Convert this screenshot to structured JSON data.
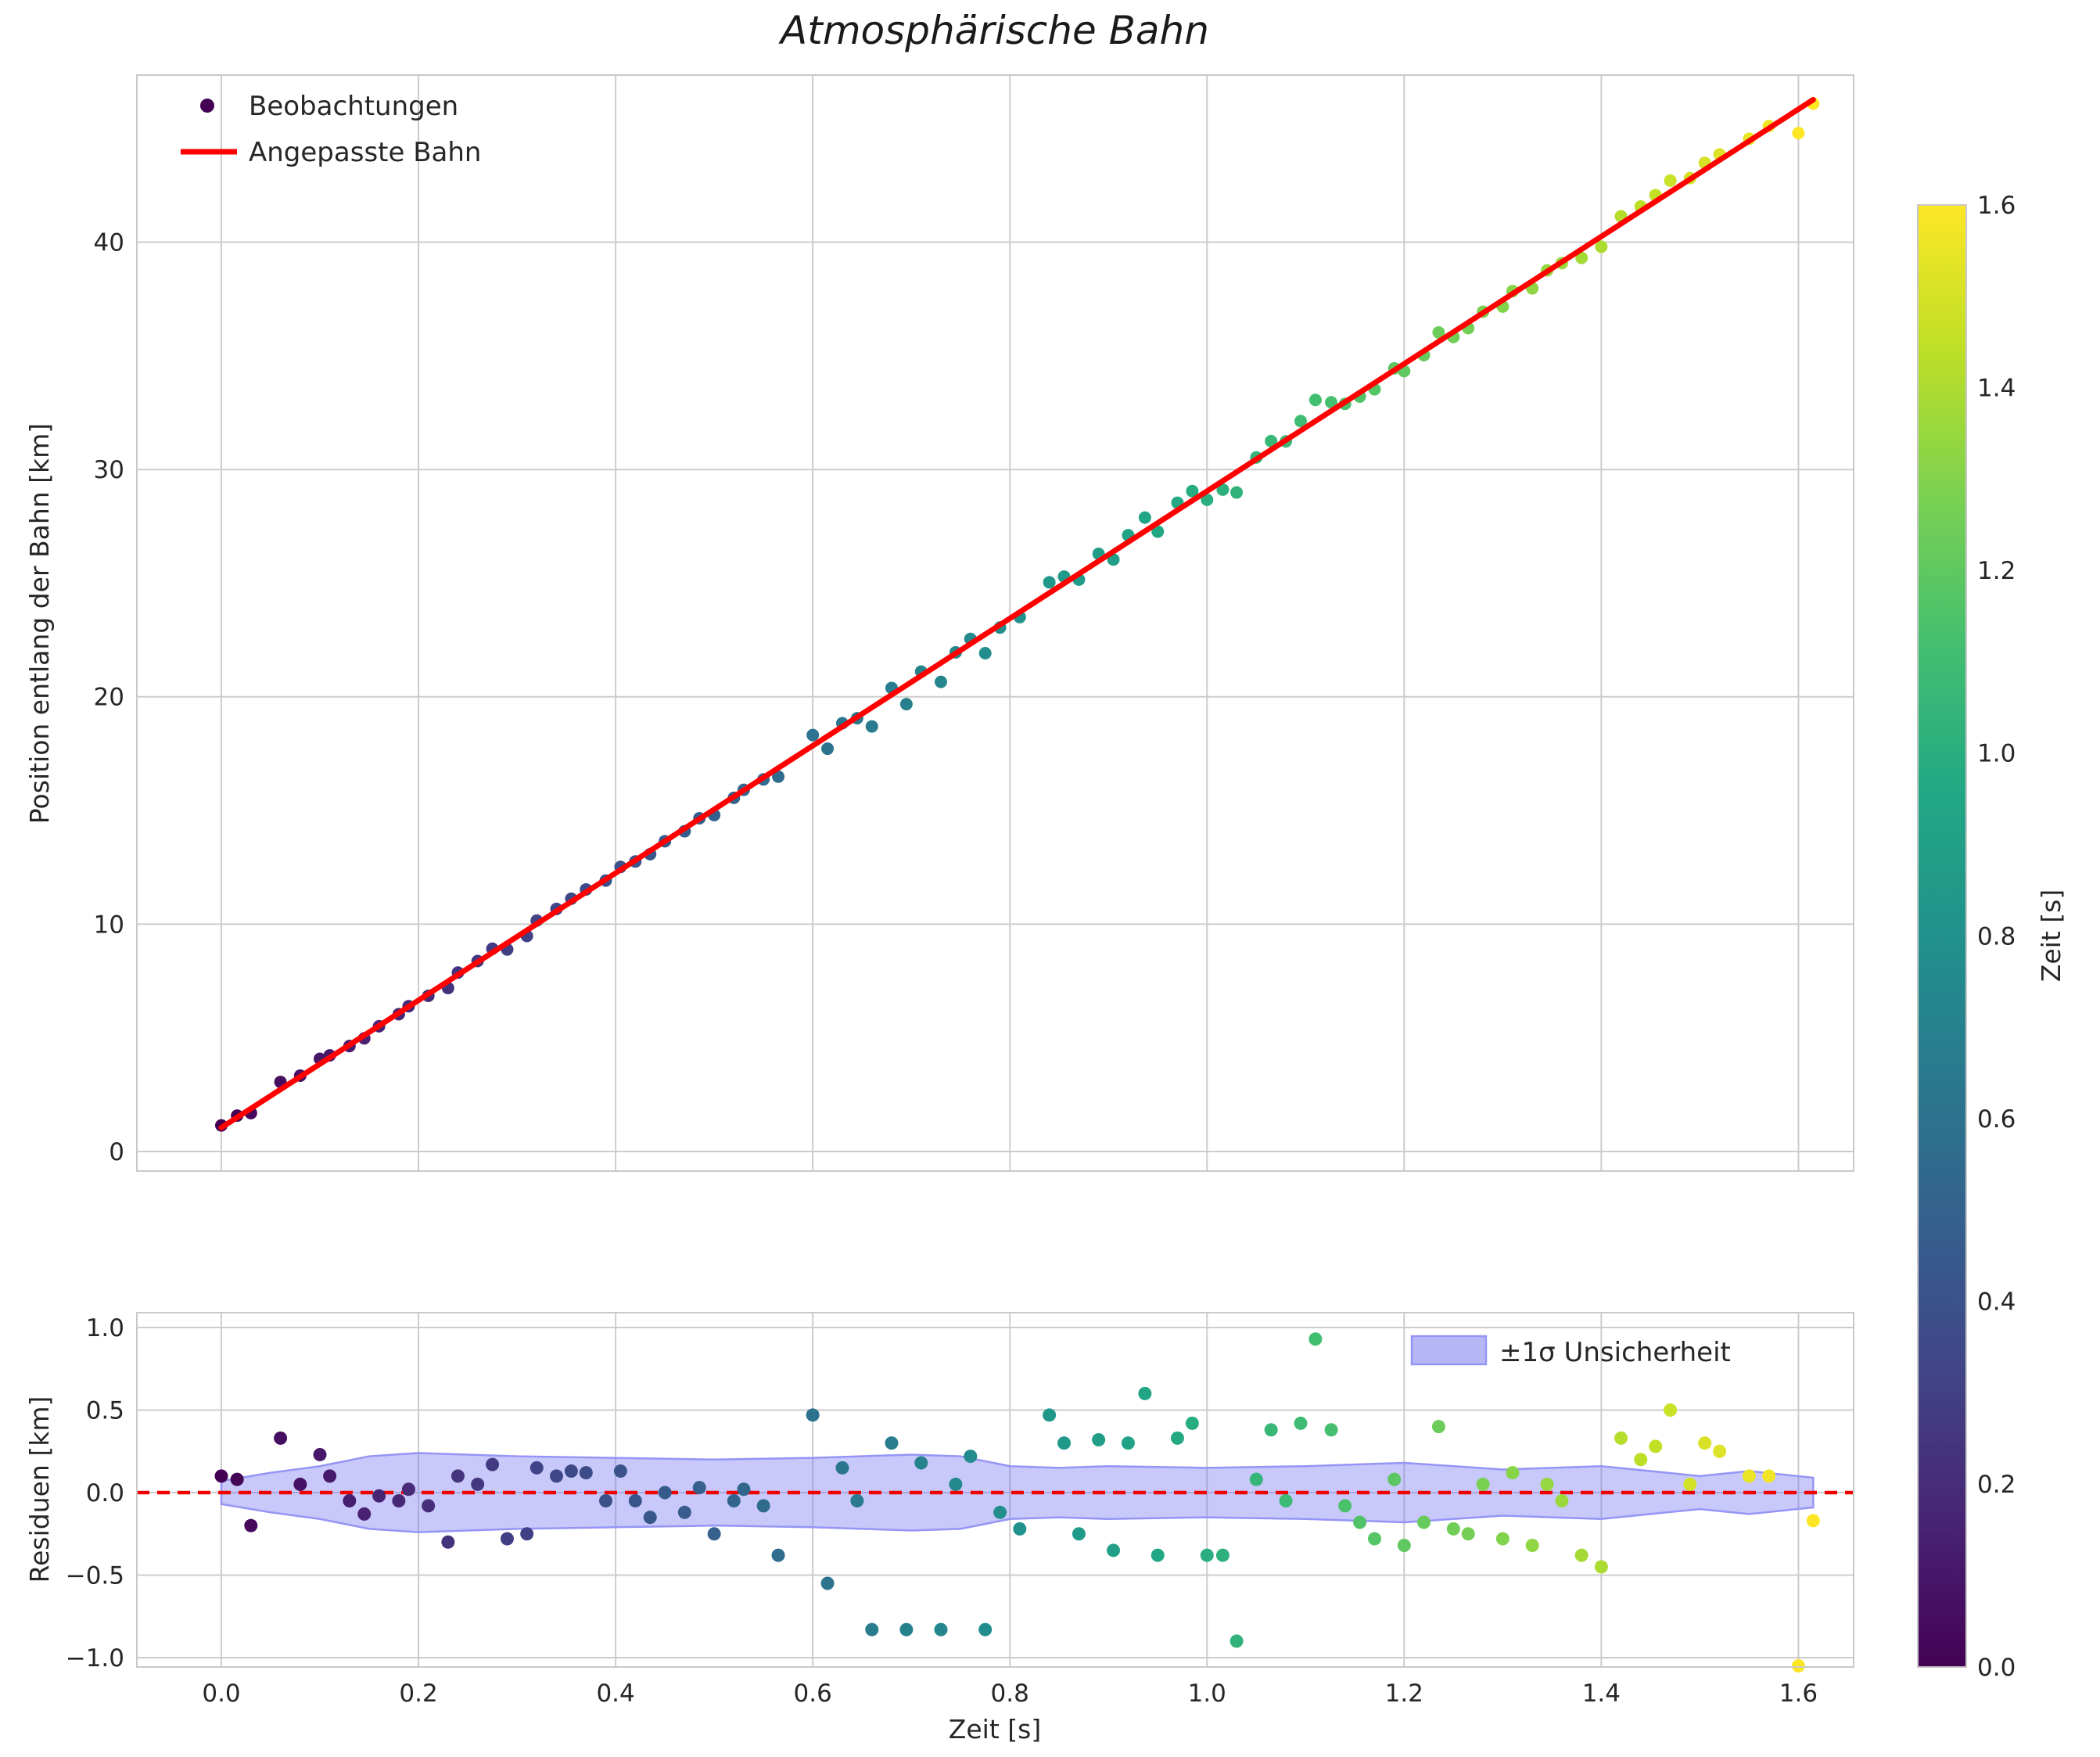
{
  "chart_data": {
    "type": "scatter",
    "title": "Atmosphärische Bahn",
    "xtick_values": [
      0.0,
      0.2,
      0.4,
      0.6,
      0.8,
      1.0,
      1.2,
      1.4,
      1.6
    ],
    "xtick_labels": [
      "0.0",
      "0.2",
      "0.4",
      "0.6",
      "0.8",
      "1.0",
      "1.2",
      "1.4",
      "1.6"
    ],
    "top_plot": {
      "ylabel": "Position entlang der Bahn [km]",
      "xlim": [
        -0.0857,
        1.656
      ],
      "ylim": [
        -0.86,
        47.35
      ],
      "ytick_values": [
        0,
        10,
        20,
        30,
        40
      ],
      "ytick_labels": [
        "0",
        "10",
        "20",
        "30",
        "40"
      ],
      "legend": [
        {
          "label": "Beobachtungen",
          "marker": "dot"
        },
        {
          "label": "Angepasste Bahn",
          "marker": "line"
        }
      ],
      "grid": true
    },
    "bottom_plot": {
      "ylabel": "Residuen [km]",
      "xlabel": "Zeit [s]",
      "xlim": [
        -0.0857,
        1.656
      ],
      "ylim": [
        -1.057,
        1.09
      ],
      "ytick_values": [
        -1.0,
        -0.5,
        0.0,
        0.5,
        1.0
      ],
      "ytick_labels": [
        "−1.0",
        "−0.5",
        "0.0",
        "0.5",
        "1.0"
      ],
      "legend_label": "±1σ Unsicherheit",
      "zero_line_value": 0.0,
      "grid": true
    },
    "fit": {
      "slope": 28.0,
      "intercept": 1.05,
      "t_start": 0.0,
      "t_end": 1.615
    },
    "points_t_resid": [
      [
        0.0,
        0.1
      ],
      [
        0.016,
        0.08
      ],
      [
        0.03,
        -0.2
      ],
      [
        0.06,
        0.33
      ],
      [
        0.08,
        0.05
      ],
      [
        0.1,
        0.23
      ],
      [
        0.11,
        0.1
      ],
      [
        0.13,
        -0.05
      ],
      [
        0.145,
        -0.13
      ],
      [
        0.16,
        -0.02
      ],
      [
        0.18,
        -0.05
      ],
      [
        0.19,
        0.02
      ],
      [
        0.21,
        -0.08
      ],
      [
        0.23,
        -0.3
      ],
      [
        0.24,
        0.1
      ],
      [
        0.26,
        0.05
      ],
      [
        0.275,
        0.17
      ],
      [
        0.29,
        -0.28
      ],
      [
        0.31,
        -0.25
      ],
      [
        0.32,
        0.15
      ],
      [
        0.34,
        0.1
      ],
      [
        0.355,
        0.13
      ],
      [
        0.37,
        0.12
      ],
      [
        0.39,
        -0.05
      ],
      [
        0.405,
        0.13
      ],
      [
        0.42,
        -0.05
      ],
      [
        0.435,
        -0.15
      ],
      [
        0.45,
        0.0
      ],
      [
        0.47,
        -0.12
      ],
      [
        0.485,
        0.03
      ],
      [
        0.5,
        -0.25
      ],
      [
        0.52,
        -0.05
      ],
      [
        0.53,
        0.02
      ],
      [
        0.55,
        -0.08
      ],
      [
        0.565,
        -0.38
      ],
      [
        0.6,
        0.47
      ],
      [
        0.615,
        -0.55
      ],
      [
        0.63,
        0.15
      ],
      [
        0.645,
        -0.05
      ],
      [
        0.66,
        -0.83
      ],
      [
        0.68,
        0.3
      ],
      [
        0.695,
        -0.83
      ],
      [
        0.71,
        0.18
      ],
      [
        0.73,
        -0.83
      ],
      [
        0.745,
        0.05
      ],
      [
        0.76,
        0.22
      ],
      [
        0.775,
        -0.83
      ],
      [
        0.79,
        -0.12
      ],
      [
        0.81,
        -0.22
      ],
      [
        0.84,
        0.47
      ],
      [
        0.855,
        0.3
      ],
      [
        0.87,
        -0.25
      ],
      [
        0.89,
        0.32
      ],
      [
        0.905,
        -0.35
      ],
      [
        0.92,
        0.3
      ],
      [
        0.937,
        0.6
      ],
      [
        0.95,
        -0.38
      ],
      [
        0.97,
        0.33
      ],
      [
        0.985,
        0.42
      ],
      [
        1.0,
        -0.38
      ],
      [
        1.016,
        -0.38
      ],
      [
        1.03,
        -0.9
      ],
      [
        1.05,
        0.08
      ],
      [
        1.065,
        0.38
      ],
      [
        1.08,
        -0.05
      ],
      [
        1.095,
        0.42
      ],
      [
        1.11,
        0.93
      ],
      [
        1.126,
        0.38
      ],
      [
        1.14,
        -0.08
      ],
      [
        1.155,
        -0.18
      ],
      [
        1.17,
        -0.28
      ],
      [
        1.19,
        0.08
      ],
      [
        1.2,
        -0.32
      ],
      [
        1.22,
        -0.18
      ],
      [
        1.235,
        0.4
      ],
      [
        1.25,
        -0.22
      ],
      [
        1.265,
        -0.25
      ],
      [
        1.28,
        0.05
      ],
      [
        1.3,
        -0.28
      ],
      [
        1.31,
        0.12
      ],
      [
        1.33,
        -0.32
      ],
      [
        1.345,
        0.05
      ],
      [
        1.36,
        -0.05
      ],
      [
        1.38,
        -0.38
      ],
      [
        1.4,
        -0.45
      ],
      [
        1.42,
        0.33
      ],
      [
        1.44,
        0.2
      ],
      [
        1.455,
        0.28
      ],
      [
        1.47,
        0.5
      ],
      [
        1.49,
        0.05
      ],
      [
        1.505,
        0.3
      ],
      [
        1.52,
        0.25
      ],
      [
        1.55,
        0.1
      ],
      [
        1.57,
        0.1
      ],
      [
        1.6,
        -1.05
      ],
      [
        1.615,
        -0.17
      ]
    ],
    "band": {
      "x": [
        0.0,
        0.05,
        0.1,
        0.15,
        0.2,
        0.3,
        0.4,
        0.5,
        0.6,
        0.7,
        0.75,
        0.8,
        0.85,
        0.9,
        1.0,
        1.1,
        1.2,
        1.3,
        1.4,
        1.45,
        1.5,
        1.55,
        1.615
      ],
      "sigma": [
        0.07,
        0.12,
        0.16,
        0.22,
        0.24,
        0.22,
        0.21,
        0.2,
        0.21,
        0.23,
        0.22,
        0.16,
        0.15,
        0.16,
        0.15,
        0.16,
        0.18,
        0.14,
        0.16,
        0.13,
        0.1,
        0.13,
        0.09
      ]
    },
    "colorbar": {
      "label": "Zeit [s]",
      "min": 0.0,
      "max": 1.6,
      "tick_values": [
        0.0,
        0.2,
        0.4,
        0.6,
        0.8,
        1.0,
        1.2,
        1.4,
        1.6
      ],
      "tick_labels": [
        "0.0",
        "0.2",
        "0.4",
        "0.6",
        "0.8",
        "1.0",
        "1.2",
        "1.4",
        "1.6"
      ]
    },
    "colormap_stops": [
      [
        0.0,
        "#440154"
      ],
      [
        0.1,
        "#482475"
      ],
      [
        0.2,
        "#414487"
      ],
      [
        0.3,
        "#355f8d"
      ],
      [
        0.4,
        "#2a788e"
      ],
      [
        0.5,
        "#21918c"
      ],
      [
        0.6,
        "#22a884"
      ],
      [
        0.7,
        "#44bf70"
      ],
      [
        0.8,
        "#7ad151"
      ],
      [
        0.9,
        "#bddf26"
      ],
      [
        1.0,
        "#fde725"
      ]
    ],
    "colors": {
      "fit_line": "#ff0000",
      "zero_dashed": "#ee0000",
      "band_fill": "#6f6ff2",
      "band_edge": "#9595f6",
      "grid": "#cccccc",
      "spine": "#c9c9c9",
      "text": "#262626"
    }
  }
}
